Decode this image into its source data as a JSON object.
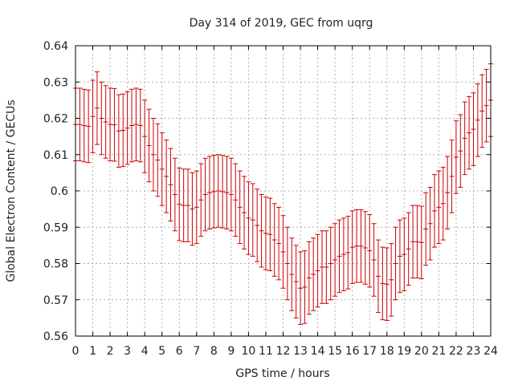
{
  "chart_data": {
    "type": "scatter",
    "title": "Day 314 of 2019, GEC from uqrg",
    "xlabel": "GPS time / hours",
    "ylabel": "Global Electron Content / GECUs",
    "xlim": [
      0,
      24
    ],
    "ylim": [
      0.56,
      0.64
    ],
    "x_ticks": [
      0,
      1,
      2,
      3,
      4,
      5,
      6,
      7,
      8,
      9,
      10,
      11,
      12,
      13,
      14,
      15,
      16,
      17,
      18,
      19,
      20,
      21,
      22,
      23,
      24
    ],
    "y_ticks": [
      0.56,
      0.57,
      0.58,
      0.59,
      0.6,
      0.61,
      0.62,
      0.63,
      0.64
    ],
    "y_tick_labels": [
      "0.56",
      "0.57",
      "0.58",
      "0.59",
      "0.6",
      "0.61",
      "0.62",
      "0.63",
      "0.64"
    ],
    "grid": true,
    "color": "#cc0000",
    "series": [
      {
        "name": "GEC",
        "x": [
          0,
          0.25,
          0.5,
          0.75,
          1,
          1.25,
          1.5,
          1.75,
          2,
          2.25,
          2.5,
          2.75,
          3,
          3.25,
          3.5,
          3.75,
          4,
          4.25,
          4.5,
          4.75,
          5,
          5.25,
          5.5,
          5.75,
          6,
          6.25,
          6.5,
          6.75,
          7,
          7.25,
          7.5,
          7.75,
          8,
          8.25,
          8.5,
          8.75,
          9,
          9.25,
          9.5,
          9.75,
          10,
          10.25,
          10.5,
          10.75,
          11,
          11.25,
          11.5,
          11.75,
          12,
          12.25,
          12.5,
          12.75,
          13,
          13.25,
          13.5,
          13.75,
          14,
          14.25,
          14.5,
          14.75,
          15,
          15.25,
          15.5,
          15.75,
          16,
          16.25,
          16.5,
          16.75,
          17,
          17.25,
          17.5,
          17.75,
          18,
          18.25,
          18.5,
          18.75,
          19,
          19.25,
          19.5,
          19.75,
          20,
          20.25,
          20.5,
          20.75,
          21,
          21.25,
          21.5,
          21.75,
          22,
          22.25,
          22.5,
          22.75,
          23,
          23.25,
          23.5,
          23.75,
          24
        ],
        "y": [
          0.6183,
          0.6183,
          0.618,
          0.6178,
          0.6205,
          0.6228,
          0.62,
          0.619,
          0.6183,
          0.6182,
          0.6165,
          0.6167,
          0.6173,
          0.618,
          0.6183,
          0.618,
          0.615,
          0.6125,
          0.61,
          0.6085,
          0.606,
          0.604,
          0.6017,
          0.599,
          0.5963,
          0.596,
          0.596,
          0.595,
          0.5955,
          0.5975,
          0.599,
          0.5995,
          0.5998,
          0.6,
          0.5998,
          0.5995,
          0.599,
          0.5975,
          0.5955,
          0.594,
          0.5925,
          0.592,
          0.5905,
          0.589,
          0.5883,
          0.588,
          0.5865,
          0.5855,
          0.5832,
          0.58,
          0.577,
          0.575,
          0.5732,
          0.5735,
          0.576,
          0.577,
          0.578,
          0.579,
          0.579,
          0.58,
          0.581,
          0.582,
          0.5825,
          0.583,
          0.5845,
          0.5848,
          0.5848,
          0.5843,
          0.5835,
          0.581,
          0.5765,
          0.5745,
          0.5743,
          0.5755,
          0.58,
          0.582,
          0.5825,
          0.584,
          0.586,
          0.586,
          0.5858,
          0.5895,
          0.591,
          0.5945,
          0.5955,
          0.5965,
          0.5995,
          0.604,
          0.6093,
          0.611,
          0.6145,
          0.616,
          0.617,
          0.6195,
          0.622,
          0.6235,
          0.625
        ],
        "error": 0.01
      }
    ]
  }
}
